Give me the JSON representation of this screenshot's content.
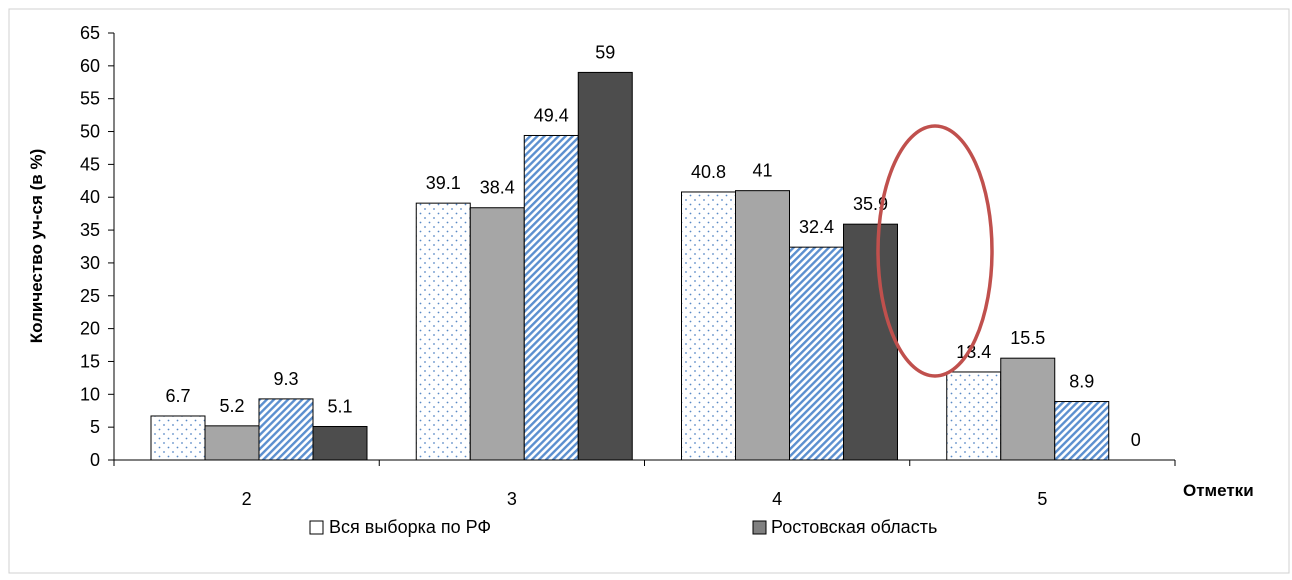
{
  "chart_data": {
    "type": "bar",
    "categories": [
      "2",
      "3",
      "4",
      "5"
    ],
    "series": [
      {
        "style": "white-dotted",
        "fill": "#ffffff",
        "dot_color": "#5a8ac6",
        "values": [
          6.7,
          39.1,
          40.8,
          13.4
        ],
        "labels": [
          "6.7",
          "39.1",
          "40.8",
          "13.4"
        ]
      },
      {
        "style": "light-gray",
        "fill": "#a6a6a6",
        "values": [
          5.2,
          38.4,
          41,
          15.5
        ],
        "labels": [
          "5.2",
          "38.4",
          "41",
          "15.5"
        ]
      },
      {
        "style": "blue-hatched",
        "fill": "#ffffff",
        "hatch_color": "#5b8fcf",
        "values": [
          9.3,
          49.4,
          32.4,
          8.9
        ],
        "labels": [
          "9.3",
          "49.4",
          "32.4",
          "8.9"
        ]
      },
      {
        "style": "dark-gray",
        "fill": "#4d4d4d",
        "values": [
          5.1,
          59,
          35.9,
          0
        ],
        "labels": [
          "5.1",
          "59",
          "35.9",
          "0"
        ]
      }
    ],
    "ylabel": "Количество уч-ся (в %)",
    "xlabel": "Отметки",
    "ylim": [
      0,
      65
    ],
    "ytick_step": 5,
    "ytick_labels": [
      "0",
      "5",
      "10",
      "15",
      "20",
      "25",
      "30",
      "35",
      "40",
      "45",
      "50",
      "55",
      "60",
      "65"
    ],
    "grid": false,
    "legend": [
      {
        "label": "Вся выборка по РФ",
        "style": "white-outline"
      },
      {
        "label": "Ростовская область",
        "style": "gray-filled"
      }
    ],
    "legend_position": "bottom",
    "annotation": {
      "shape": "ellipse",
      "color": "#c0504d",
      "target": "category 4, series 3-4"
    }
  }
}
